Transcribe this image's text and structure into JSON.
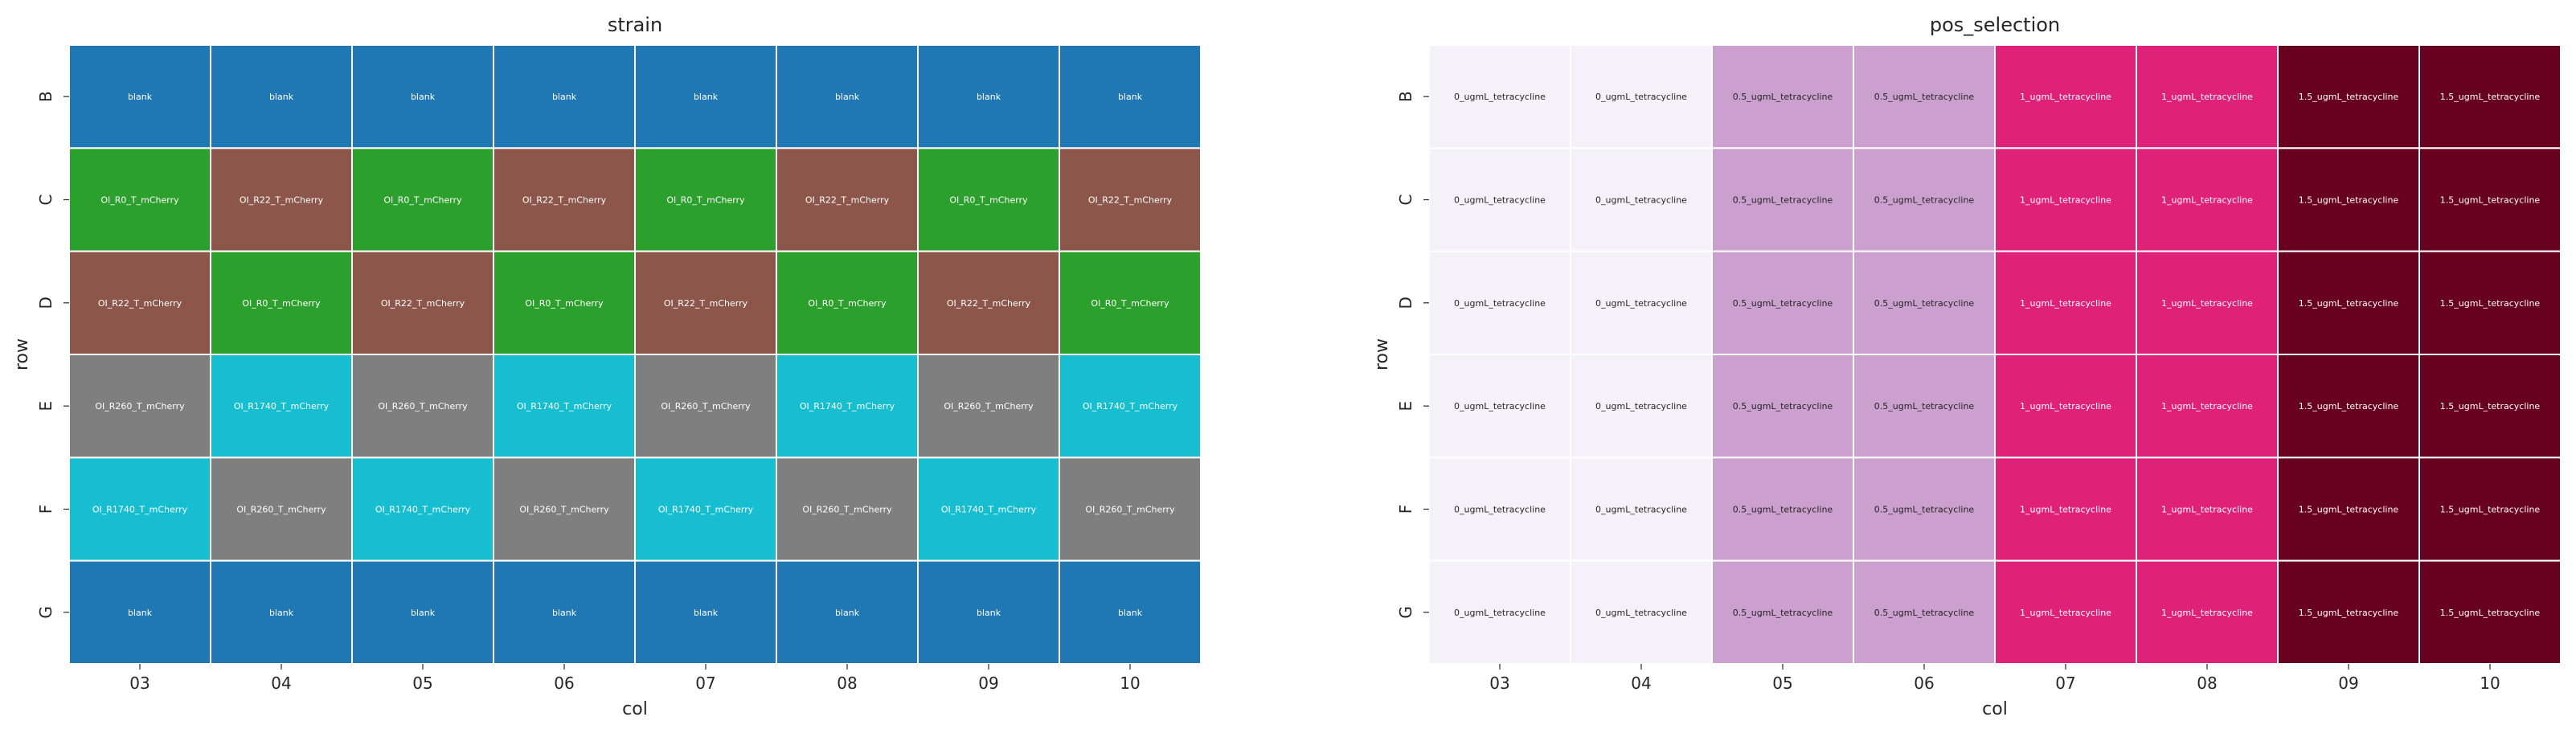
{
  "chart_data": [
    {
      "type": "heatmap",
      "title": "strain",
      "xlabel": "col",
      "ylabel": "row",
      "x": [
        "03",
        "04",
        "05",
        "06",
        "07",
        "08",
        "09",
        "10"
      ],
      "y": [
        "B",
        "C",
        "D",
        "E",
        "F",
        "G"
      ],
      "cells": [
        [
          "blank",
          "blank",
          "blank",
          "blank",
          "blank",
          "blank",
          "blank",
          "blank"
        ],
        [
          "OI_R0_T_mCherry",
          "OI_R22_T_mCherry",
          "OI_R0_T_mCherry",
          "OI_R22_T_mCherry",
          "OI_R0_T_mCherry",
          "OI_R22_T_mCherry",
          "OI_R0_T_mCherry",
          "OI_R22_T_mCherry"
        ],
        [
          "OI_R22_T_mCherry",
          "OI_R0_T_mCherry",
          "OI_R22_T_mCherry",
          "OI_R0_T_mCherry",
          "OI_R22_T_mCherry",
          "OI_R0_T_mCherry",
          "OI_R22_T_mCherry",
          "OI_R0_T_mCherry"
        ],
        [
          "OI_R260_T_mCherry",
          "OI_R1740_T_mCherry",
          "OI_R260_T_mCherry",
          "OI_R1740_T_mCherry",
          "OI_R260_T_mCherry",
          "OI_R1740_T_mCherry",
          "OI_R260_T_mCherry",
          "OI_R1740_T_mCherry"
        ],
        [
          "OI_R1740_T_mCherry",
          "OI_R260_T_mCherry",
          "OI_R1740_T_mCherry",
          "OI_R260_T_mCherry",
          "OI_R1740_T_mCherry",
          "OI_R260_T_mCherry",
          "OI_R1740_T_mCherry",
          "OI_R260_T_mCherry"
        ],
        [
          "blank",
          "blank",
          "blank",
          "blank",
          "blank",
          "blank",
          "blank",
          "blank"
        ]
      ],
      "category_colors": {
        "blank": "#1f77b4",
        "OI_R0_T_mCherry": "#2ca02c",
        "OI_R22_T_mCherry": "#8c564b",
        "OI_R260_T_mCherry": "#7f7f7f",
        "OI_R1740_T_mCherry": "#17becf"
      },
      "colorbar": false,
      "grid": false
    },
    {
      "type": "heatmap",
      "title": "pos_selection",
      "xlabel": "col",
      "ylabel": "row",
      "x": [
        "03",
        "04",
        "05",
        "06",
        "07",
        "08",
        "09",
        "10"
      ],
      "y": [
        "B",
        "C",
        "D",
        "E",
        "F",
        "G"
      ],
      "cells": [
        [
          "0_ugmL_tetracycline",
          "0_ugmL_tetracycline",
          "0.5_ugmL_tetracycline",
          "0.5_ugmL_tetracycline",
          "1_ugmL_tetracycline",
          "1_ugmL_tetracycline",
          "1.5_ugmL_tetracycline",
          "1.5_ugmL_tetracycline"
        ],
        [
          "0_ugmL_tetracycline",
          "0_ugmL_tetracycline",
          "0.5_ugmL_tetracycline",
          "0.5_ugmL_tetracycline",
          "1_ugmL_tetracycline",
          "1_ugmL_tetracycline",
          "1.5_ugmL_tetracycline",
          "1.5_ugmL_tetracycline"
        ],
        [
          "0_ugmL_tetracycline",
          "0_ugmL_tetracycline",
          "0.5_ugmL_tetracycline",
          "0.5_ugmL_tetracycline",
          "1_ugmL_tetracycline",
          "1_ugmL_tetracycline",
          "1.5_ugmL_tetracycline",
          "1.5_ugmL_tetracycline"
        ],
        [
          "0_ugmL_tetracycline",
          "0_ugmL_tetracycline",
          "0.5_ugmL_tetracycline",
          "0.5_ugmL_tetracycline",
          "1_ugmL_tetracycline",
          "1_ugmL_tetracycline",
          "1.5_ugmL_tetracycline",
          "1.5_ugmL_tetracycline"
        ],
        [
          "0_ugmL_tetracycline",
          "0_ugmL_tetracycline",
          "0.5_ugmL_tetracycline",
          "0.5_ugmL_tetracycline",
          "1_ugmL_tetracycline",
          "1_ugmL_tetracycline",
          "1.5_ugmL_tetracycline",
          "1.5_ugmL_tetracycline"
        ],
        [
          "0_ugmL_tetracycline",
          "0_ugmL_tetracycline",
          "0.5_ugmL_tetracycline",
          "0.5_ugmL_tetracycline",
          "1_ugmL_tetracycline",
          "1_ugmL_tetracycline",
          "1.5_ugmL_tetracycline",
          "1.5_ugmL_tetracycline"
        ]
      ],
      "category_colors": {
        "0_ugmL_tetracycline": "#f4f1f8",
        "0.5_ugmL_tetracycline": "#cb9fce",
        "1_ugmL_tetracycline": "#df2179",
        "1.5_ugmL_tetracycline": "#68001f"
      },
      "colorbar": false,
      "grid": false
    }
  ]
}
